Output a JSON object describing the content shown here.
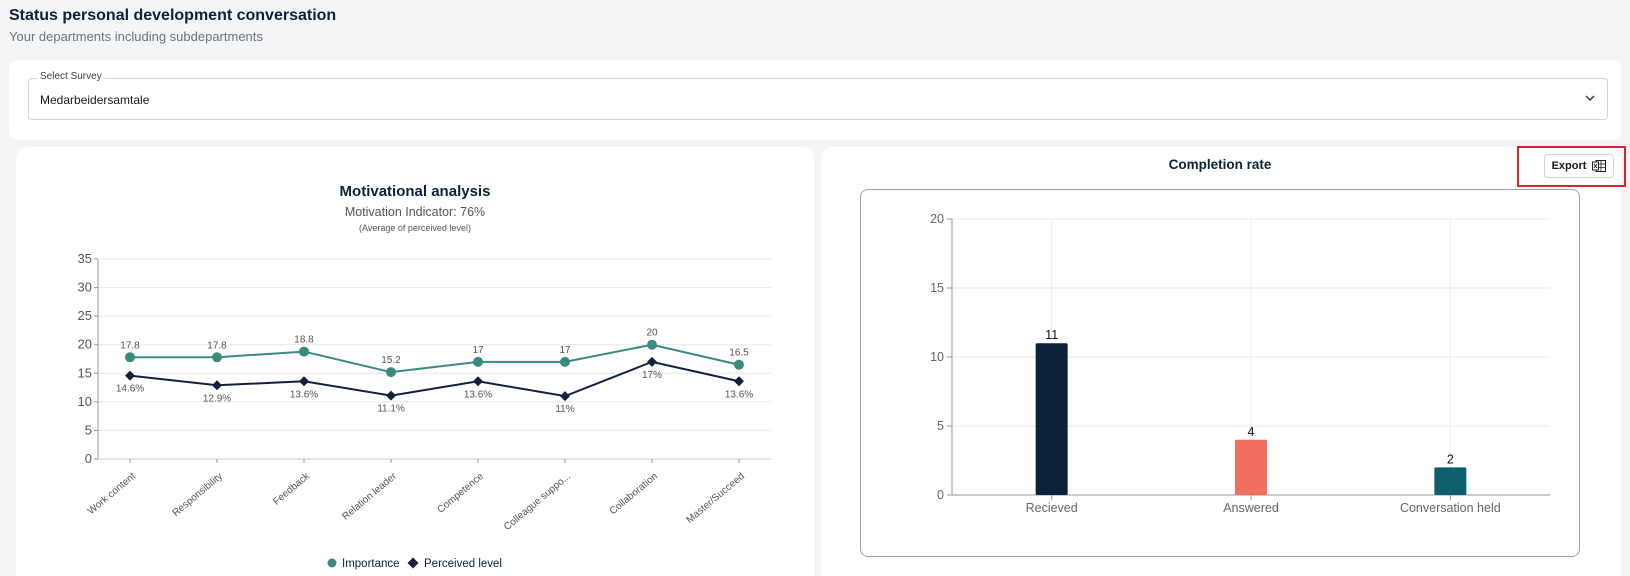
{
  "header": {
    "title": "Status personal development conversation",
    "subtitle": "Your departments including subdepartments"
  },
  "survey": {
    "label": "Select Survey",
    "value": "Medarbeidersamtale"
  },
  "motivation_chart": {
    "title": "Motivational analysis",
    "indicator": "Motivation Indicator: 76%",
    "note": "(Average of perceived level)",
    "legend": [
      "Importance",
      "Perceived level"
    ]
  },
  "completion": {
    "title": "Completion rate",
    "export_label": "Export"
  },
  "colors": {
    "importance": "#3a8a80",
    "perceived": "#13203d",
    "recieved": "#0b2239",
    "answered": "#f26e5f",
    "held": "#0f5e6b"
  },
  "chart_data": [
    {
      "type": "line",
      "title": "Motivational analysis",
      "categories": [
        "Work content",
        "Responsibility",
        "Feedback",
        "Relation leader",
        "Competence",
        "Colleague suppo...",
        "Collaboration",
        "Master/Succeed"
      ],
      "series": [
        {
          "name": "Importance",
          "values": [
            17.8,
            17.8,
            18.8,
            15.2,
            17,
            17,
            20,
            16.5
          ],
          "labels": [
            "17.8",
            "17.8",
            "18.8",
            "15.2",
            "17",
            "17",
            "20",
            "16.5"
          ]
        },
        {
          "name": "Perceived level",
          "values": [
            14.6,
            12.9,
            13.6,
            11.1,
            13.6,
            11,
            17,
            13.6
          ],
          "labels": [
            "14.6%",
            "12.9%",
            "13.6%",
            "11.1%",
            "13.6%",
            "11%",
            "17%",
            "13.6%"
          ]
        }
      ],
      "ylim": [
        0,
        35
      ],
      "yticks": [
        0,
        5,
        10,
        15,
        20,
        25,
        30,
        35
      ],
      "grid": true,
      "legend": "bottom"
    },
    {
      "type": "bar",
      "title": "Completion rate",
      "categories": [
        "Recieved",
        "Answered",
        "Conversation held"
      ],
      "values": [
        11,
        4,
        2
      ],
      "ylim": [
        0,
        20
      ],
      "yticks": [
        0,
        5,
        10,
        15,
        20
      ],
      "grid": true
    }
  ]
}
